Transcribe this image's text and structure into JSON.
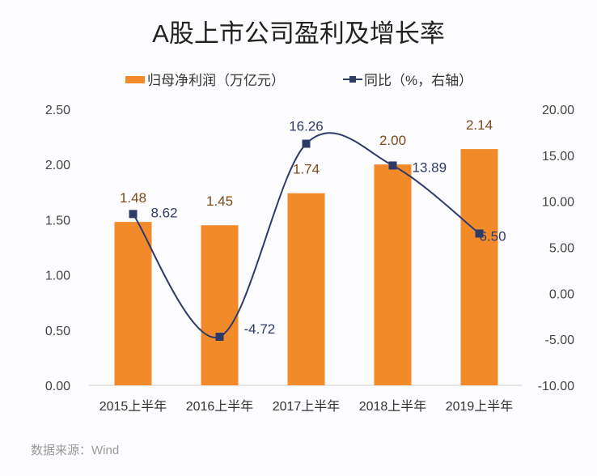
{
  "chart_data": {
    "type": "bar",
    "title": "A股上市公司盈利及增长率",
    "categories": [
      "2015上半年",
      "2016上半年",
      "2017上半年",
      "2018上半年",
      "2019上半年"
    ],
    "series": [
      {
        "name": "归母净利润（万亿元）",
        "type": "bar",
        "axis": "left",
        "values": [
          1.48,
          1.45,
          1.74,
          2.0,
          2.14
        ],
        "labels": [
          "1.48",
          "1.45",
          "1.74",
          "2.00",
          "2.14"
        ],
        "color": "#f28a2a"
      },
      {
        "name": "同比（%，右轴）",
        "type": "line",
        "axis": "right",
        "values": [
          8.62,
          -4.72,
          16.26,
          13.89,
          6.5
        ],
        "labels": [
          "8.62",
          "-4.72",
          "16.26",
          "13.89",
          "6.50"
        ],
        "color": "#2e3a6a"
      }
    ],
    "left_axis": {
      "range": [
        0,
        2.5
      ],
      "ticks": [
        "0.00",
        "0.50",
        "1.00",
        "1.50",
        "2.00",
        "2.50"
      ]
    },
    "right_axis": {
      "range": [
        -10,
        20
      ],
      "ticks": [
        "-10.00",
        "-5.00",
        "0.00",
        "5.00",
        "10.00",
        "15.00",
        "20.00"
      ]
    },
    "grid": false,
    "legend_placement": "top"
  },
  "source": "数据来源：Wind"
}
